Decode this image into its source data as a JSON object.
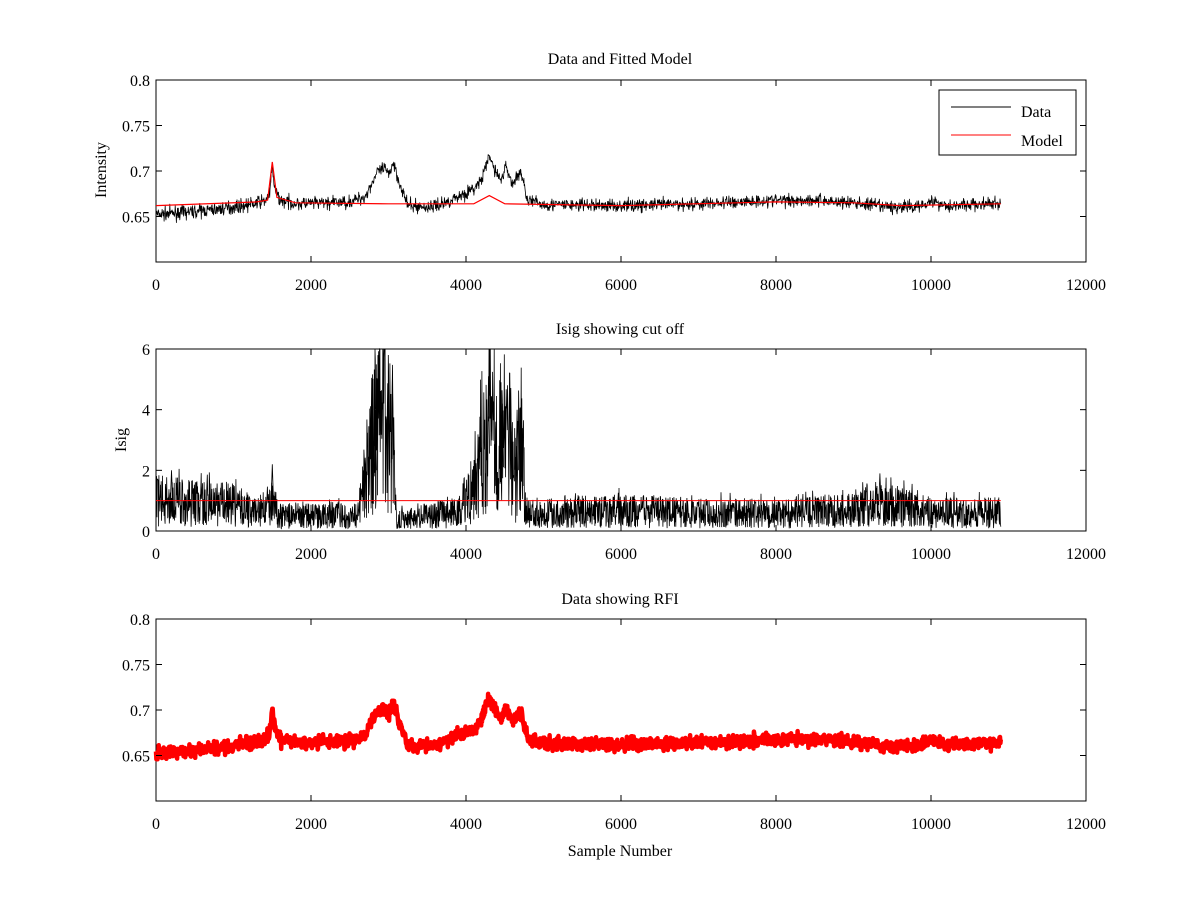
{
  "chart_data": [
    {
      "type": "line",
      "title": "Data and Fitted Model",
      "xlabel": "",
      "ylabel": "Intensity",
      "xlim": [
        0,
        12000
      ],
      "ylim": [
        0.6,
        0.8
      ],
      "xticks": [
        "0",
        "2000",
        "4000",
        "6000",
        "8000",
        "10000",
        "12000"
      ],
      "yticks": [
        "0.65",
        "0.7",
        "0.75",
        "0.8"
      ],
      "legend_position": "top-right",
      "series": [
        {
          "name": "Data",
          "color": "#000000",
          "style": "noisy-line",
          "noise": 0.005,
          "points": [
            [
              0,
              0.652
            ],
            [
              300,
              0.654
            ],
            [
              800,
              0.658
            ],
            [
              1200,
              0.663
            ],
            [
              1400,
              0.667
            ],
            [
              1470,
              0.675
            ],
            [
              1500,
              0.708
            ],
            [
              1530,
              0.68
            ],
            [
              1600,
              0.668
            ],
            [
              1800,
              0.664
            ],
            [
              2200,
              0.665
            ],
            [
              2500,
              0.666
            ],
            [
              2700,
              0.672
            ],
            [
              2850,
              0.698
            ],
            [
              2950,
              0.703
            ],
            [
              3000,
              0.695
            ],
            [
              3060,
              0.71
            ],
            [
              3150,
              0.685
            ],
            [
              3250,
              0.662
            ],
            [
              3500,
              0.66
            ],
            [
              3700,
              0.664
            ],
            [
              3900,
              0.672
            ],
            [
              4100,
              0.68
            ],
            [
              4200,
              0.69
            ],
            [
              4300,
              0.716
            ],
            [
              4380,
              0.7
            ],
            [
              4450,
              0.69
            ],
            [
              4520,
              0.705
            ],
            [
              4600,
              0.685
            ],
            [
              4700,
              0.7
            ],
            [
              4800,
              0.668
            ],
            [
              5000,
              0.663
            ],
            [
              6000,
              0.662
            ],
            [
              7000,
              0.664
            ],
            [
              8000,
              0.668
            ],
            [
              8500,
              0.668
            ],
            [
              9000,
              0.665
            ],
            [
              9500,
              0.66
            ],
            [
              9800,
              0.661
            ],
            [
              10000,
              0.667
            ],
            [
              10200,
              0.662
            ],
            [
              10900,
              0.664
            ]
          ]
        },
        {
          "name": "Model",
          "color": "#ff0000",
          "style": "line",
          "points": [
            [
              0,
              0.662
            ],
            [
              1300,
              0.666
            ],
            [
              1440,
              0.668
            ],
            [
              1500,
              0.71
            ],
            [
              1560,
              0.671
            ],
            [
              1800,
              0.665
            ],
            [
              3000,
              0.664
            ],
            [
              4100,
              0.664
            ],
            [
              4300,
              0.673
            ],
            [
              4500,
              0.664
            ],
            [
              6000,
              0.662
            ],
            [
              8000,
              0.666
            ],
            [
              9000,
              0.665
            ],
            [
              9600,
              0.662
            ],
            [
              10900,
              0.664
            ]
          ]
        }
      ]
    },
    {
      "type": "line",
      "title": "Isig showing cut off",
      "xlabel": "",
      "ylabel": "Isig",
      "xlim": [
        0,
        12000
      ],
      "ylim": [
        0,
        6
      ],
      "xticks": [
        "0",
        "2000",
        "4000",
        "6000",
        "8000",
        "10000",
        "12000"
      ],
      "yticks": [
        "0",
        "2",
        "4",
        "6"
      ],
      "cutoff": {
        "value": 1,
        "color": "#ff0000",
        "x_range": [
          0,
          10900
        ]
      },
      "series": [
        {
          "color": "#000000",
          "style": "noise-band",
          "points": [
            [
              0,
              1.0
            ],
            [
              400,
              0.95
            ],
            [
              1000,
              0.85
            ],
            [
              1300,
              0.6
            ],
            [
              1500,
              0.9
            ],
            [
              1600,
              0.5
            ],
            [
              2600,
              0.5
            ],
            [
              2800,
              3.0
            ],
            [
              2950,
              3.6
            ],
            [
              3050,
              3.2
            ],
            [
              3100,
              0.4
            ],
            [
              3900,
              0.6
            ],
            [
              4100,
              1.6
            ],
            [
              4300,
              4.1
            ],
            [
              4450,
              3.0
            ],
            [
              4550,
              3.4
            ],
            [
              4650,
              1.5
            ],
            [
              4700,
              3.0
            ],
            [
              4780,
              0.6
            ],
            [
              6000,
              0.65
            ],
            [
              7000,
              0.6
            ],
            [
              8000,
              0.55
            ],
            [
              9000,
              0.7
            ],
            [
              9300,
              0.9
            ],
            [
              9600,
              0.8
            ],
            [
              10000,
              0.6
            ],
            [
              10900,
              0.6
            ]
          ],
          "peaks": [
            [
              3050,
              5.0
            ],
            [
              4290,
              5.1
            ],
            [
              2830,
              4.0
            ],
            [
              4470,
              4.2
            ],
            [
              4660,
              4.0
            ],
            [
              9340,
              1.9
            ],
            [
              1500,
              2.2
            ],
            [
              200,
              2.0
            ]
          ]
        }
      ]
    },
    {
      "type": "scatter",
      "title": "Data showing RFI",
      "xlabel": "Sample Number",
      "ylabel": "",
      "xlim": [
        0,
        12000
      ],
      "ylim": [
        0.6,
        0.8
      ],
      "xticks": [
        "0",
        "2000",
        "4000",
        "6000",
        "8000",
        "10000",
        "12000"
      ],
      "yticks": [
        "0.65",
        "0.7",
        "0.75",
        "0.8"
      ],
      "series": [
        {
          "color": "#ff0000",
          "style": "thick-noisy-line",
          "noise": 0.005,
          "points": [
            [
              0,
              0.652
            ],
            [
              300,
              0.654
            ],
            [
              800,
              0.658
            ],
            [
              1200,
              0.663
            ],
            [
              1400,
              0.667
            ],
            [
              1470,
              0.675
            ],
            [
              1500,
              0.703
            ],
            [
              1530,
              0.68
            ],
            [
              1600,
              0.668
            ],
            [
              1800,
              0.664
            ],
            [
              2200,
              0.665
            ],
            [
              2500,
              0.666
            ],
            [
              2700,
              0.672
            ],
            [
              2850,
              0.698
            ],
            [
              2950,
              0.703
            ],
            [
              3000,
              0.695
            ],
            [
              3060,
              0.71
            ],
            [
              3150,
              0.685
            ],
            [
              3250,
              0.662
            ],
            [
              3500,
              0.66
            ],
            [
              3700,
              0.664
            ],
            [
              3900,
              0.672
            ],
            [
              4100,
              0.68
            ],
            [
              4200,
              0.69
            ],
            [
              4300,
              0.716
            ],
            [
              4380,
              0.7
            ],
            [
              4450,
              0.69
            ],
            [
              4520,
              0.705
            ],
            [
              4600,
              0.685
            ],
            [
              4700,
              0.7
            ],
            [
              4800,
              0.668
            ],
            [
              5000,
              0.663
            ],
            [
              6000,
              0.662
            ],
            [
              7000,
              0.664
            ],
            [
              8000,
              0.668
            ],
            [
              8500,
              0.668
            ],
            [
              9000,
              0.665
            ],
            [
              9500,
              0.66
            ],
            [
              9800,
              0.661
            ],
            [
              10000,
              0.667
            ],
            [
              10200,
              0.662
            ],
            [
              10900,
              0.664
            ]
          ]
        }
      ]
    }
  ]
}
